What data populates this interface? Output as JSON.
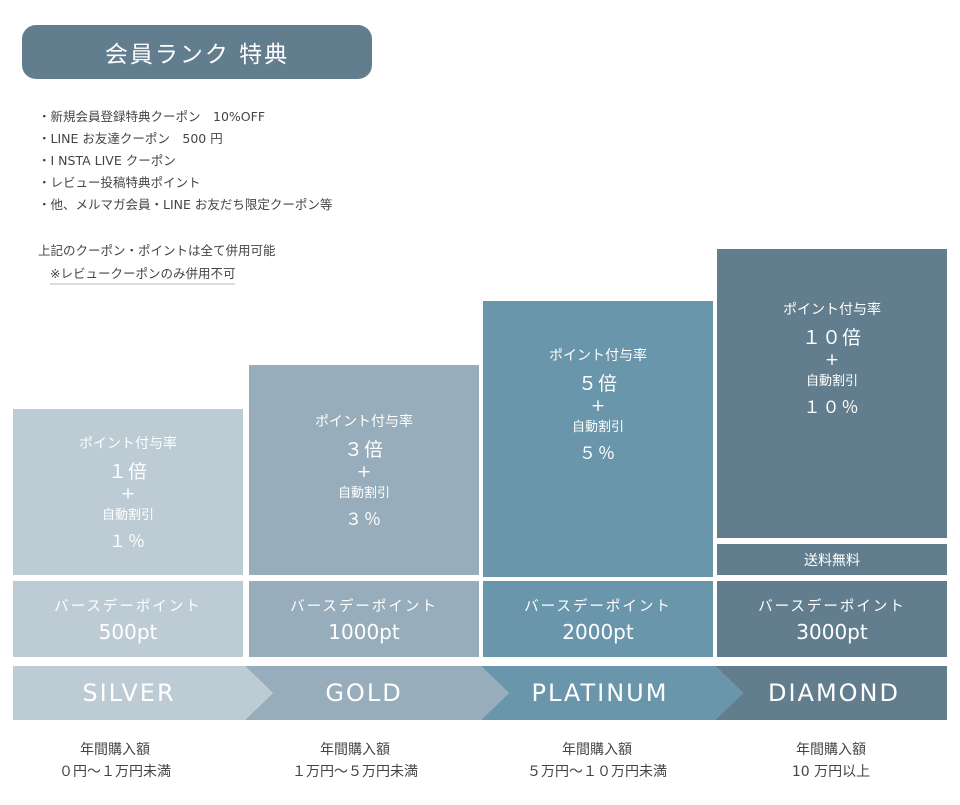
{
  "title": "会員ランク 特典",
  "perks": [
    "新規会員登録特典クーポン　10%OFF",
    "LINE お友達クーポン　500 円",
    "I NSTA LIVE クーポン",
    "レビュー投稿特典ポイント",
    "他、メルマガ会員・LINE お友だち限定クーポン等"
  ],
  "notes": {
    "line1": "上記のクーポン・ポイントは全て併用可能",
    "line2": "※レビュークーポンのみ併用不可"
  },
  "colors": {
    "silver": "#bccbd4",
    "gold": "#97adbb",
    "platinum": "#6996ab",
    "diamond": "#627d8e",
    "title_bg": "#627d8e"
  },
  "tiers": [
    {
      "rank": "SILVER",
      "rate_label": "ポイント付与率",
      "rate": "１倍",
      "plus": "+",
      "discount_label": "自動割引",
      "discount": "１％",
      "birthday_label": "バースデーポイント",
      "birthday_points": "500pt",
      "annual_label": "年間購入額",
      "annual_range": "０円〜１万円未満"
    },
    {
      "rank": "GOLD",
      "rate_label": "ポイント付与率",
      "rate": "３倍",
      "plus": "+",
      "discount_label": "自動割引",
      "discount": "３％",
      "birthday_label": "バースデーポイント",
      "birthday_points": "1000pt",
      "annual_label": "年間購入額",
      "annual_range": "１万円〜５万円未満"
    },
    {
      "rank": "PLATINUM",
      "rate_label": "ポイント付与率",
      "rate": "５倍",
      "plus": "+",
      "discount_label": "自動割引",
      "discount": "５％",
      "birthday_label": "バースデーポイント",
      "birthday_points": "2000pt",
      "annual_label": "年間購入額",
      "annual_range": "５万円〜１０万円未満"
    },
    {
      "rank": "DIAMOND",
      "rate_label": "ポイント付与率",
      "rate": "１０倍",
      "plus": "+",
      "discount_label": "自動割引",
      "discount": "１０％",
      "extra": "送料無料",
      "birthday_label": "バースデーポイント",
      "birthday_points": "3000pt",
      "annual_label": "年間購入額",
      "annual_range": "10 万円以上"
    }
  ]
}
